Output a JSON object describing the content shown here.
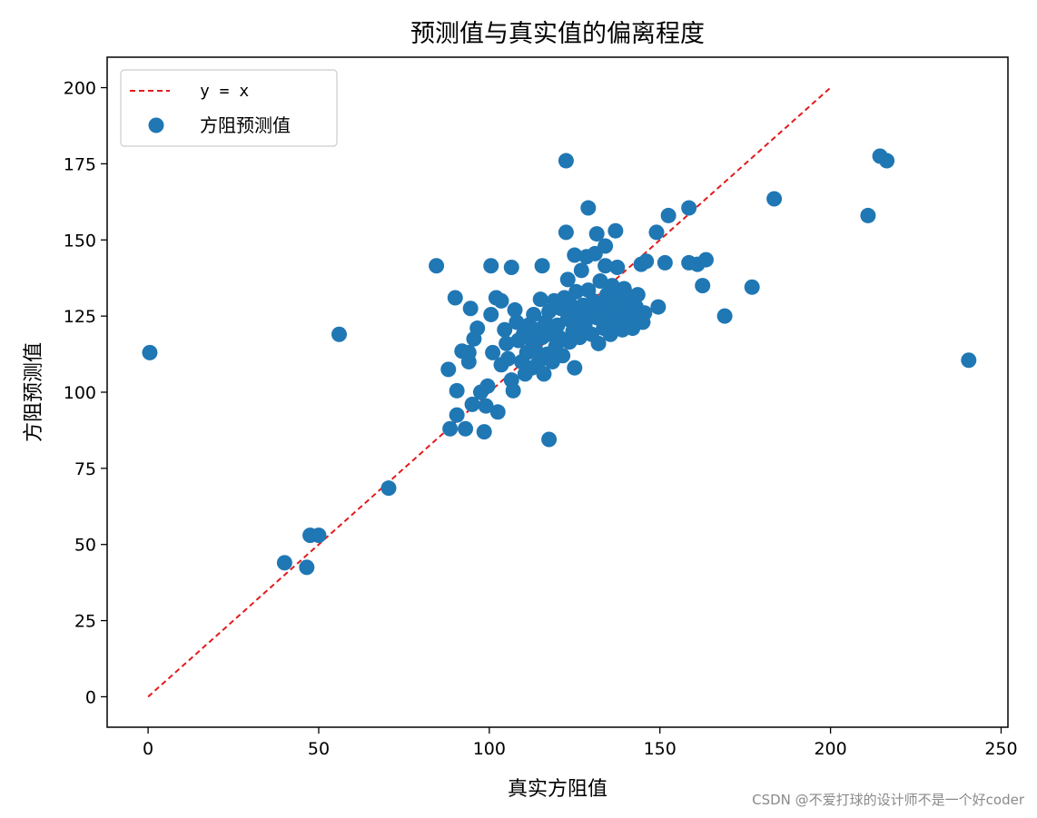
{
  "chart_data": {
    "type": "scatter",
    "title": "预测值与真实值的偏离程度",
    "xlabel": "真实方阻值",
    "ylabel": "方阻预测值",
    "xlim": [
      -12,
      252
    ],
    "ylim": [
      -10,
      210
    ],
    "xticks": [
      0,
      50,
      100,
      150,
      200,
      250
    ],
    "yticks": [
      0,
      25,
      50,
      75,
      100,
      125,
      150,
      175,
      200
    ],
    "grid": false,
    "legend_position": "top-left",
    "reference_line": {
      "name": "y = x",
      "x": [
        0,
        200
      ],
      "y": [
        0,
        200
      ],
      "color": "#e31a1c",
      "style": "dashed"
    },
    "series": [
      {
        "name": "方阻预测值",
        "color": "#1f77b4",
        "points": [
          [
            0.5,
            113
          ],
          [
            40,
            44
          ],
          [
            46.5,
            42.5
          ],
          [
            47.5,
            53
          ],
          [
            50,
            53
          ],
          [
            56,
            119
          ],
          [
            70.5,
            68.5
          ],
          [
            84.5,
            141.5
          ],
          [
            88,
            107.5
          ],
          [
            88.5,
            88
          ],
          [
            90,
            131
          ],
          [
            90.5,
            92.5
          ],
          [
            90.5,
            100.5
          ],
          [
            92,
            113.5
          ],
          [
            93,
            88
          ],
          [
            94,
            110
          ],
          [
            94,
            113
          ],
          [
            94.5,
            127.5
          ],
          [
            95,
            96
          ],
          [
            95.5,
            117.5
          ],
          [
            96.5,
            121
          ],
          [
            97.5,
            100
          ],
          [
            98.5,
            87
          ],
          [
            99,
            95.5
          ],
          [
            99.5,
            102
          ],
          [
            100.5,
            141.5
          ],
          [
            100.5,
            125.5
          ],
          [
            101,
            113
          ],
          [
            102,
            131
          ],
          [
            102.5,
            93.5
          ],
          [
            103.5,
            130
          ],
          [
            103.5,
            109
          ],
          [
            104.5,
            120.5
          ],
          [
            105,
            116
          ],
          [
            105.5,
            111
          ],
          [
            106.5,
            141
          ],
          [
            106.5,
            104
          ],
          [
            107,
            100.5
          ],
          [
            107.5,
            127
          ],
          [
            108,
            123
          ],
          [
            108.5,
            117
          ],
          [
            109.5,
            110
          ],
          [
            110,
            119
          ],
          [
            110.5,
            106
          ],
          [
            111,
            113
          ],
          [
            111.5,
            122
          ],
          [
            112,
            117.5
          ],
          [
            112.5,
            108
          ],
          [
            113,
            125.5
          ],
          [
            113.5,
            114
          ],
          [
            114,
            120.5
          ],
          [
            114.5,
            110
          ],
          [
            115,
            130.5
          ],
          [
            115.5,
            141.5
          ],
          [
            115.5,
            118
          ],
          [
            116,
            106
          ],
          [
            116.5,
            123
          ],
          [
            117,
            112.5
          ],
          [
            117.5,
            84.5
          ],
          [
            117.5,
            126.5
          ],
          [
            118,
            119
          ],
          [
            118.5,
            110
          ],
          [
            119,
            130
          ],
          [
            119.5,
            115
          ],
          [
            120,
            122
          ],
          [
            120.5,
            118
          ],
          [
            121,
            127.5
          ],
          [
            121.5,
            112
          ],
          [
            122,
            131
          ],
          [
            122.5,
            176
          ],
          [
            122.5,
            152.5
          ],
          [
            123,
            137
          ],
          [
            123,
            124
          ],
          [
            123.5,
            116.5
          ],
          [
            124,
            128.5
          ],
          [
            124.5,
            120
          ],
          [
            125,
            145
          ],
          [
            125,
            108
          ],
          [
            125.5,
            133
          ],
          [
            126,
            124.5
          ],
          [
            126.5,
            118
          ],
          [
            127,
            140
          ],
          [
            127.5,
            128.5
          ],
          [
            128,
            122
          ],
          [
            128.5,
            144.5
          ],
          [
            129,
            160.5
          ],
          [
            129,
            133.5
          ],
          [
            129.5,
            126
          ],
          [
            130,
            119
          ],
          [
            130.5,
            130
          ],
          [
            131,
            145.5
          ],
          [
            131.5,
            152
          ],
          [
            131.5,
            124.5
          ],
          [
            132,
            116
          ],
          [
            132.5,
            136.5
          ],
          [
            133,
            128
          ],
          [
            133.5,
            121
          ],
          [
            134,
            141.5
          ],
          [
            134,
            148
          ],
          [
            134.5,
            132
          ],
          [
            135,
            125.5
          ],
          [
            135.5,
            119
          ],
          [
            136,
            135
          ],
          [
            136.5,
            129
          ],
          [
            137,
            153
          ],
          [
            137,
            123
          ],
          [
            137.5,
            141
          ],
          [
            138,
            131
          ],
          [
            138.5,
            126
          ],
          [
            139,
            120.5
          ],
          [
            139.5,
            134
          ],
          [
            140,
            128
          ],
          [
            140.5,
            123
          ],
          [
            141,
            131.5
          ],
          [
            141.5,
            125.5
          ],
          [
            142,
            121
          ],
          [
            143,
            128
          ],
          [
            143.5,
            132
          ],
          [
            144.5,
            142
          ],
          [
            145,
            123
          ],
          [
            145.5,
            126
          ],
          [
            146,
            143
          ],
          [
            149,
            152.5
          ],
          [
            149.5,
            128
          ],
          [
            151.5,
            142.5
          ],
          [
            152.5,
            158
          ],
          [
            158.5,
            160.5
          ],
          [
            158.5,
            142.5
          ],
          [
            161,
            142
          ],
          [
            162.5,
            135
          ],
          [
            163.5,
            143.5
          ],
          [
            169,
            125
          ],
          [
            177,
            134.5
          ],
          [
            183.5,
            163.5
          ],
          [
            211,
            158
          ],
          [
            214.5,
            177.5
          ],
          [
            216.5,
            176
          ],
          [
            240.5,
            110.5
          ]
        ]
      }
    ]
  },
  "legend": {
    "line_label": "y = x",
    "marker_label": "方阻预测值"
  },
  "watermark": "CSDN @不爱打球的设计师不是一个好coder"
}
